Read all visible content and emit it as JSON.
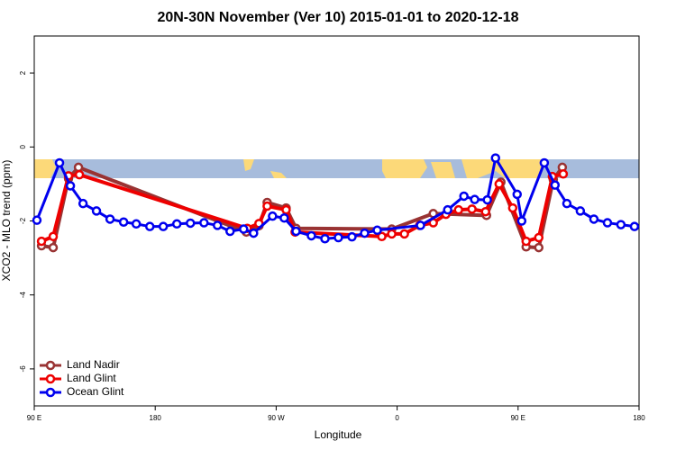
{
  "chart_data": {
    "type": "line",
    "title": "20N-30N November (Ver 10)   2015-01-01 to 2020-12-18",
    "xlabel": "Longitude",
    "ylabel": "XCO2 - MLO trend (ppm)",
    "xlim": [
      90,
      540
    ],
    "xticks": [
      {
        "value": 90,
        "label": "90 E"
      },
      180,
      {
        "value": 270,
        "label": "90 W"
      },
      {
        "value": 360,
        "label": "0"
      },
      {
        "value": 450,
        "label": "90 E"
      },
      {
        "value": 540,
        "label": "180"
      }
    ],
    "ylim": [
      -7,
      3
    ],
    "yticks": [
      -6,
      -4,
      -2,
      0,
      2
    ],
    "legend": "bottom-left",
    "series": [
      {
        "name": "Land Nadir",
        "color": "#993333",
        "x": [
          95.4,
          104.1,
          115.5,
          122.9,
          247.8,
          257.2,
          263.3,
          277.4,
          284.8,
          356.0,
          386.9,
          426.5,
          437.2,
          456.0,
          465.4,
          476.2,
          482.9
        ],
        "values": [
          -2.67,
          -2.72,
          -0.85,
          -0.55,
          -2.3,
          -2.13,
          -1.5,
          -1.65,
          -2.2,
          -2.22,
          -1.8,
          -1.85,
          -0.95,
          -2.7,
          -2.72,
          -0.88,
          -0.55
        ]
      },
      {
        "name": "Land Glint",
        "color": "#ee0000",
        "x": [
          95.4,
          104.1,
          115.5,
          123.6,
          248.5,
          257.2,
          263.3,
          277.4,
          284.1,
          348.6,
          356.0,
          365.4,
          376.8,
          386.9,
          396.3,
          405.7,
          415.7,
          425.8,
          435.9,
          446.0,
          456.0,
          465.4,
          475.5,
          483.6
        ],
        "values": [
          -2.55,
          -2.42,
          -0.78,
          -0.75,
          -2.2,
          -2.07,
          -1.6,
          -1.7,
          -2.3,
          -2.42,
          -2.35,
          -2.35,
          -2.12,
          -2.05,
          -1.82,
          -1.7,
          -1.68,
          -1.75,
          -1.0,
          -1.65,
          -2.55,
          -2.45,
          -0.8,
          -0.73
        ]
      },
      {
        "name": "Ocean Glint",
        "color": "#0000ee",
        "x": [
          92.0,
          108.8,
          116.9,
          126.3,
          136.3,
          146.4,
          156.5,
          165.9,
          176.0,
          186.0,
          196.1,
          206.2,
          216.3,
          226.3,
          235.7,
          245.8,
          253.2,
          267.3,
          276.0,
          284.8,
          296.2,
          306.3,
          316.3,
          326.4,
          335.8,
          345.2,
          377.4,
          397.6,
          409.7,
          417.7,
          427.1,
          433.2,
          449.3,
          452.7,
          469.5,
          477.5,
          486.3,
          496.3,
          506.4,
          516.5,
          526.5,
          536.6
        ],
        "values": [
          -1.98,
          -0.43,
          -1.05,
          -1.53,
          -1.73,
          -1.95,
          -2.03,
          -2.08,
          -2.15,
          -2.15,
          -2.08,
          -2.06,
          -2.05,
          -2.12,
          -2.28,
          -2.22,
          -2.33,
          -1.87,
          -1.92,
          -2.28,
          -2.4,
          -2.48,
          -2.45,
          -2.43,
          -2.33,
          -2.25,
          -2.12,
          -1.7,
          -1.33,
          -1.42,
          -1.43,
          -0.3,
          -1.28,
          -2.0,
          -0.43,
          -1.03,
          -1.53,
          -1.73,
          -1.95,
          -2.05,
          -2.1,
          -2.15
        ]
      }
    ]
  }
}
